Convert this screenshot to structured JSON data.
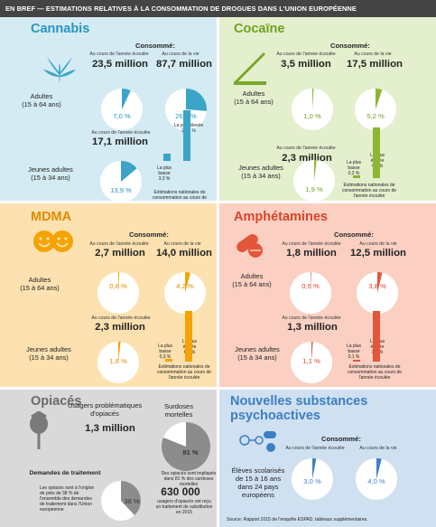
{
  "header": {
    "text": "EN BREF — ESTIMATIONS RELATIVES À LA CONSOMMATION DE DROGUES DANS L'UNION EUROPÉENNE"
  },
  "common": {
    "consomme": "Consommé:",
    "annee": "Au cours de l'année écoulée",
    "vie": "Au cours de la vie",
    "adultes": "Adultes",
    "adultes_age": "(15 à 64 ans)",
    "jeunes": "Jeunes adultes",
    "jeunes_age": "(15 à 34 ans)",
    "plus_basse": "La plus basse",
    "plus_elevee": "La plus élevée",
    "estimations": "Estimations nationales de consommation au cours de l'année écoulée"
  },
  "colors": {
    "cannabis": "#3aa5c7",
    "cocaine": "#8cb731",
    "mdma": "#f4a300",
    "amphet": "#e2563a",
    "opiaces": "#8c8c8c",
    "nsp": "#3d7fc4"
  },
  "cannabis": {
    "title": "Cannabis",
    "adult_year": "23,5 million",
    "adult_life": "87,7 million",
    "adult_year_pct": "7,0 %",
    "adult_life_pct": "26,3 %",
    "young_year": "17,1 million",
    "young_year_pct": "13,9 %",
    "low": "3,3 %",
    "high": "22,1 %"
  },
  "cocaine": {
    "title": "Cocaïne",
    "adult_year": "3,5 million",
    "adult_life": "17,5 million",
    "adult_year_pct": "1,0 %",
    "adult_life_pct": "5,2 %",
    "young_year": "2,3 million",
    "young_year_pct": "1,9 %",
    "low": "0,2 %",
    "high": "4,0 %"
  },
  "mdma": {
    "title": "MDMA",
    "adult_year": "2,7 million",
    "adult_life": "14,0 million",
    "adult_year_pct": "0,8 %",
    "adult_life_pct": "4,2 %",
    "young_year": "2,3 million",
    "young_year_pct": "1,8 %",
    "low": "0,3 %",
    "high": "6,6 %"
  },
  "amphet": {
    "title": "Amphétamines",
    "adult_year": "1,8 million",
    "adult_life": "12,5 million",
    "adult_year_pct": "0,5 %",
    "adult_life_pct": "3,8 %",
    "young_year": "1,3 million",
    "young_year_pct": "1,1 %",
    "low": "0,1 %",
    "high": "3,1 %"
  },
  "opiaces": {
    "title": "Opiacés",
    "usagers": "Usagers problématiques d'opiacés",
    "usagers_val": "1,3 million",
    "surdoses": "Surdoses mortelles",
    "surdoses_pct": "81 %",
    "surdoses_text": "Des opiacés sont impliqués dans 81 % des surdoses mortelles",
    "traitement": "Demandes de traitement",
    "traitement_text": "Les opiacés sont à l'origine de près de 38 % de l'ensemble des demandes de traitement dans l'Union européenne",
    "traitement_pct": "38 %",
    "substitution_val": "630 000",
    "substitution_text": "usagers d'opiacés ont reçu un traitement de substitution en 2015"
  },
  "nsp": {
    "title": "Nouvelles substances psychoactives",
    "eleves": "Élèves scolarisés de 15 à 16 ans dans 24 pays européens",
    "year_pct": "3,0 %",
    "life_pct": "4,0 %",
    "source": "Source: Rapport 2015 de l'enquête ESPAD, tableaux supplémentaires."
  },
  "pies": {
    "cannabis": [
      0.07,
      0.263,
      0.139
    ],
    "cocaine": [
      0.01,
      0.052,
      0.019
    ],
    "mdma": [
      0.008,
      0.042,
      0.018
    ],
    "amphet": [
      0.005,
      0.038,
      0.011
    ],
    "opiaces": [
      0.81,
      0.38
    ],
    "nsp": [
      0.03,
      0.04
    ]
  },
  "bars": {
    "cannabis": [
      3.3,
      22.1
    ],
    "cocaine": [
      0.2,
      4.0
    ],
    "mdma": [
      0.3,
      6.6
    ],
    "amphet": [
      0.1,
      3.1
    ]
  }
}
